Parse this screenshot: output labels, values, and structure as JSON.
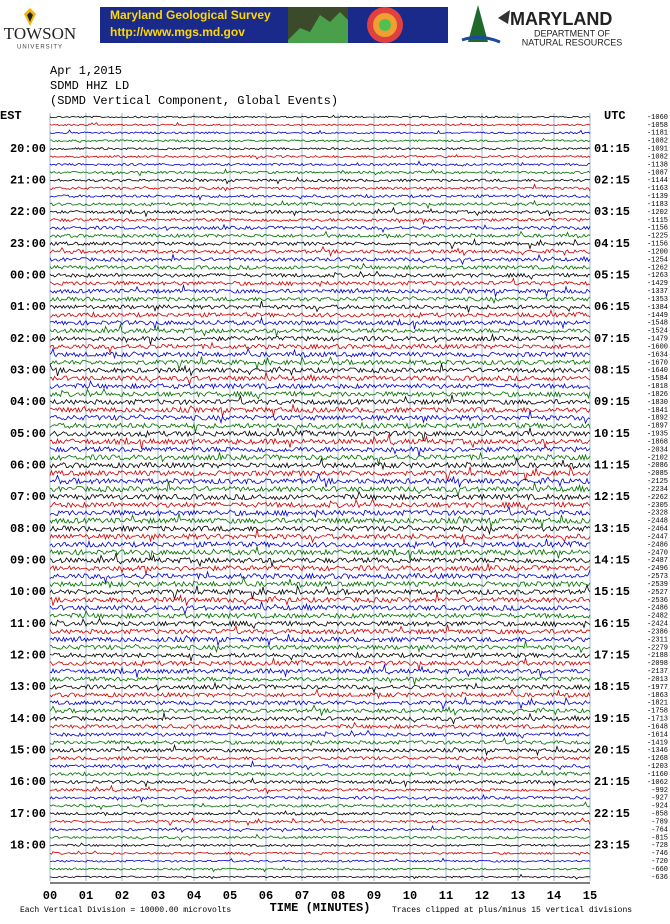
{
  "header": {
    "towson": "TOWSON",
    "towson_sub": "UNIVERSITY",
    "mgs_title": "Maryland Geological Survey",
    "mgs_url": "http://www.mgs.md.gov",
    "dnr_title": "MARYLAND",
    "dnr_sub1": "DEPARTMENT OF",
    "dnr_sub2": "NATURAL RESOURCES"
  },
  "plot": {
    "date": "Apr 1,2015",
    "station": "SDMD HHZ LD",
    "description": "(SDMD Vertical Component, Global Events)",
    "left_zone": "EST",
    "right_zone": "UTC",
    "est_labels": [
      "20:00",
      "21:00",
      "22:00",
      "23:00",
      "00:00",
      "01:00",
      "02:00",
      "03:00",
      "04:00",
      "05:00",
      "06:00",
      "07:00",
      "08:00",
      "09:00",
      "10:00",
      "11:00",
      "12:00",
      "13:00",
      "14:00",
      "15:00",
      "16:00",
      "17:00",
      "18:00"
    ],
    "utc_labels": [
      "01:15",
      "02:15",
      "03:15",
      "04:15",
      "05:15",
      "06:15",
      "07:15",
      "08:15",
      "09:15",
      "10:15",
      "11:15",
      "12:15",
      "13:15",
      "14:15",
      "15:15",
      "16:15",
      "17:15",
      "18:15",
      "19:15",
      "20:15",
      "21:15",
      "22:15",
      "23:15"
    ],
    "offsets": [
      -1060,
      -1058,
      -1181,
      -1082,
      -1091,
      -1082,
      -1138,
      -1087,
      -1144,
      -1163,
      -1139,
      -1183,
      -1202,
      -1115,
      -1156,
      -1225,
      -1156,
      -1200,
      -1254,
      -1262,
      -1263,
      -1429,
      -1337,
      -1353,
      -1384,
      -1449,
      -1548,
      -1524,
      -1479,
      -1600,
      -1634,
      -1670,
      -1640,
      -1584,
      -1818,
      -1826,
      -1830,
      -1841,
      -1892,
      -1897,
      -1935,
      -1868,
      -2034,
      -2102,
      -2086,
      -2085,
      -2125,
      -2234,
      -2262,
      -2305,
      -2328,
      -2448,
      -2464,
      -2447,
      -2486,
      -2470,
      -2487,
      -2496,
      -2573,
      -2539,
      -2527,
      -2536,
      -2486,
      -2482,
      -2424,
      -2386,
      -2311,
      -2279,
      -2188,
      -2098,
      -2137,
      -2013,
      -1977,
      -1863,
      -1821,
      -1758,
      -1713,
      -1648,
      -1614,
      -1419,
      -1346,
      -1268,
      -1203,
      -1160,
      -1062,
      -992,
      -927,
      -924,
      -858,
      -789,
      -764,
      -815,
      -728,
      -746,
      -720,
      -660,
      -636
    ],
    "minute_labels": [
      "00",
      "01",
      "02",
      "03",
      "04",
      "05",
      "06",
      "07",
      "08",
      "09",
      "10",
      "11",
      "12",
      "13",
      "14",
      "15"
    ],
    "x_title": "TIME (MINUTES)",
    "scale_note": "Each Vertical Division = 10000.00 microvolts",
    "clip_note": "Traces clipped at plus/minus 15 vertical divisions"
  }
}
